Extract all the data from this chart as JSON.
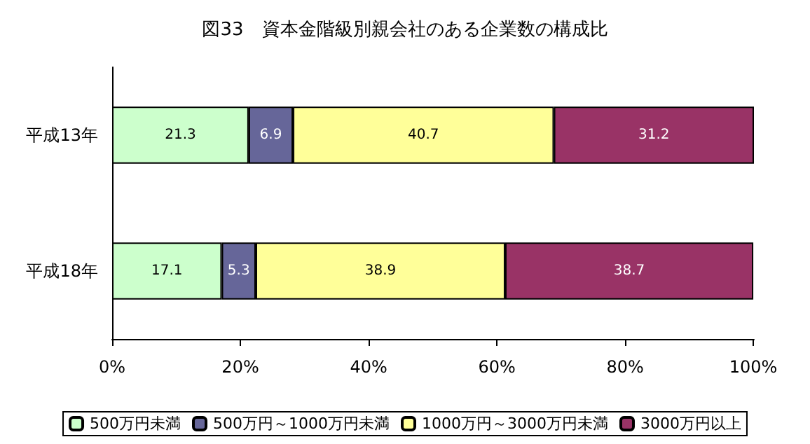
{
  "chart_data": {
    "type": "bar",
    "orientation": "horizontal",
    "stacked": true,
    "title": "図33　資本金階級別親会社のある企業数の構成比",
    "categories": [
      "平成13年",
      "平成18年"
    ],
    "series": [
      {
        "name": "500万円未満",
        "color": "#ccffcc",
        "values": [
          21.3,
          17.1
        ]
      },
      {
        "name": "500万円～1000万円未満",
        "color": "#666699",
        "values": [
          6.9,
          5.3
        ]
      },
      {
        "name": "1000万円～3000万円未満",
        "color": "#ffff99",
        "values": [
          40.7,
          38.9
        ]
      },
      {
        "name": "3000万円以上",
        "color": "#993366",
        "values": [
          31.2,
          38.7
        ]
      }
    ],
    "xlim": [
      0,
      100.1
    ],
    "xticks": [
      {
        "value": 0,
        "label": "0%"
      },
      {
        "value": 20,
        "label": "20%"
      },
      {
        "value": 40,
        "label": "40%"
      },
      {
        "value": 60,
        "label": "60%"
      },
      {
        "value": 80,
        "label": "80%"
      },
      {
        "value": 100,
        "label": "100%"
      }
    ],
    "data_labels": true,
    "grid": false,
    "legend": "bottom"
  }
}
